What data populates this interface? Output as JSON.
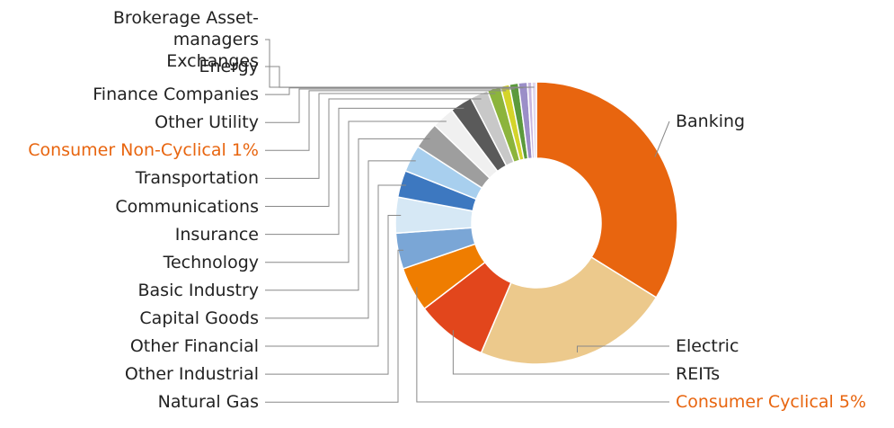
{
  "chart_data": {
    "type": "donut",
    "categories": [
      "Banking",
      "Electric",
      "REITs",
      "Consumer Cyclical",
      "Natural Gas",
      "Other Industrial",
      "Other Financial",
      "Capital Goods",
      "Basic Industry",
      "Technology",
      "Insurance",
      "Communications",
      "Transportation",
      "Consumer Non-Cyclical",
      "Other Utility",
      "Finance Companies",
      "Energy",
      "Brokerage Asset-managers Exchanges"
    ],
    "values": [
      33,
      22,
      8,
      5,
      4,
      4,
      3,
      3,
      3,
      2.5,
      2.5,
      2,
      1.5,
      1,
      1,
      1,
      0.5,
      0.5
    ],
    "value_labels": [
      null,
      null,
      null,
      "5%",
      null,
      null,
      null,
      null,
      null,
      null,
      null,
      null,
      null,
      "1%",
      null,
      null,
      null,
      null
    ],
    "colors": [
      "#e8650f",
      "#ecc98c",
      "#e2461c",
      "#ef7d00",
      "#7aa6d6",
      "#d6e8f5",
      "#3d78c0",
      "#a8cfee",
      "#9e9e9e",
      "#f0f0f0",
      "#5a5a5a",
      "#c8c8c8",
      "#8cb43c",
      "#d4d42a",
      "#5b9a3c",
      "#9b8ec8",
      "#c9b8e0",
      "#e0d8ee"
    ]
  }
}
